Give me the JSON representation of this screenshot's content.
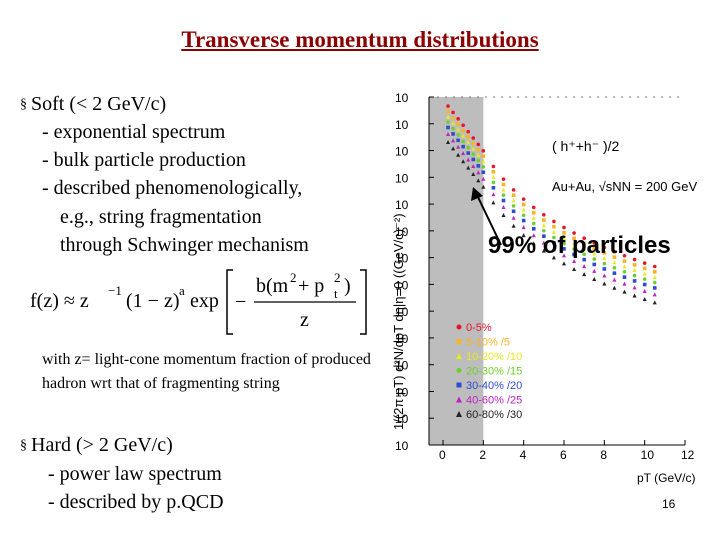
{
  "slide": {
    "title": "Transverse momentum distributions",
    "soft": {
      "heading": "Soft (< 2 GeV/c)",
      "lines": [
        "- exponential spectrum",
        "- bulk particle production",
        "- described phenomenologically,",
        "e.g., string fragmentation",
        "through Schwinger mechanism"
      ]
    },
    "formula": {
      "lhs": "f(z) ≈ z",
      "exp1": "−1",
      "mid": "(1 − z)",
      "exp2": "a",
      "exp": "exp",
      "num_b": "b(m",
      "num_2a": "2",
      "num_plus": " + p",
      "num_t": "t",
      "num_2b": "2",
      "num_close": ")",
      "den": "z",
      "minus": "−"
    },
    "note": "with z= light-cone momentum fraction of produced hadron wrt that of fragmenting string",
    "hard": {
      "heading": "Hard (> 2 GeV/c)",
      "lines": [
        "- power law spectrum",
        "- described by p.QCD"
      ]
    },
    "annotation": "99% of particles",
    "page_number": "16"
  },
  "chart_data": {
    "type": "scatter",
    "ylabel": "1/(2π pT) d²N/dpT dη|η=0 ((GeV/c)⁻²)",
    "xlabel": "pT (GeV/c)",
    "x_ticks": [
      "0",
      "2",
      "4",
      "6",
      "8",
      "10",
      "12"
    ],
    "y_ticks": [
      "10",
      "10",
      "10",
      "10",
      "10",
      "10",
      "10",
      "10",
      "10",
      "10",
      "10",
      "10",
      "10",
      "10"
    ],
    "ylog_range": [
      -10,
      3
    ],
    "xlim": [
      0,
      12
    ],
    "shaded_region": [
      0,
      2
    ],
    "legend_title": "( h⁺+h⁻ )/2",
    "system": "Au+Au, √sNN = 200 GeV",
    "series": [
      {
        "name": "0-5%",
        "color": "#e8142a",
        "marker": "circle",
        "scale": 1,
        "log_norm": 2.9
      },
      {
        "name": "5-10% /5",
        "color": "#f7b526",
        "marker": "square",
        "scale": 5,
        "log_norm": 2.7
      },
      {
        "name": "10-20% /10",
        "color": "#e8e827",
        "marker": "triangle",
        "scale": 10,
        "log_norm": 2.5
      },
      {
        "name": "20-30% /15",
        "color": "#6ecf2c",
        "marker": "circle",
        "scale": 15,
        "log_norm": 2.3
      },
      {
        "name": "30-40% /20",
        "color": "#2f4ccf",
        "marker": "square",
        "scale": 20,
        "log_norm": 2.1
      },
      {
        "name": "40-60% /25",
        "color": "#c020c0",
        "marker": "triangle",
        "scale": 25,
        "log_norm": 1.85
      },
      {
        "name": "60-80% /30",
        "color": "#222222",
        "marker": "triangle",
        "scale": 30,
        "log_norm": 1.55
      }
    ],
    "pt_points": [
      0.25,
      0.5,
      0.75,
      1.0,
      1.25,
      1.5,
      1.75,
      2.0,
      2.5,
      3.0,
      3.5,
      4.0,
      4.5,
      5.0,
      5.5,
      6.0,
      6.5,
      7.0,
      7.5,
      8.0,
      8.5,
      9.0,
      9.5,
      10.0,
      10.5
    ],
    "soft_slope": 2.2,
    "power_index": 8
  }
}
